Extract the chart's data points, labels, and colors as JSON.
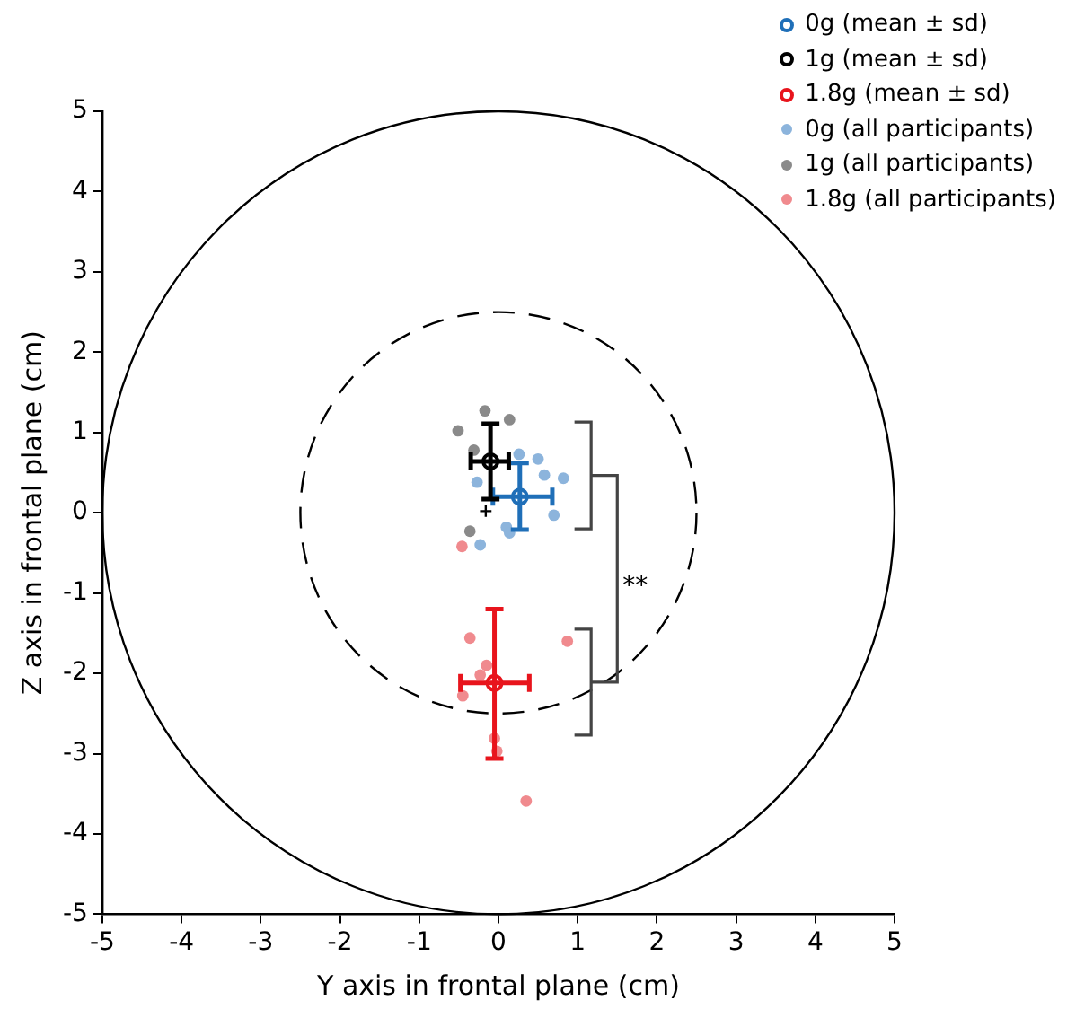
{
  "chart_data": {
    "type": "scatter",
    "xlabel": "Y axis in frontal plane (cm)",
    "ylabel": "Z axis in frontal plane (cm)",
    "xlim": [
      -5,
      5
    ],
    "ylim": [
      -5,
      5
    ],
    "xticks": [
      -5,
      -4,
      -3,
      -2,
      -1,
      0,
      1,
      2,
      3,
      4,
      5
    ],
    "yticks": [
      -5,
      -4,
      -3,
      -2,
      -1,
      0,
      1,
      2,
      3,
      4,
      5
    ],
    "grid": false,
    "legend": "top right",
    "annotations": [
      "**"
    ],
    "series": [
      {
        "name": "0g (all participants)",
        "color": "#8cb4dc",
        "marker": "circle",
        "x": [
          0.26,
          0.5,
          0.58,
          0.82,
          -0.27,
          0.7,
          0.1,
          0.14,
          -0.23
        ],
        "values": [
          0.73,
          0.67,
          0.47,
          0.43,
          0.38,
          -0.03,
          -0.18,
          -0.25,
          -0.4
        ]
      },
      {
        "name": "1g (all participants)",
        "color": "#8a8a8a",
        "marker": "circle",
        "x": [
          -0.17,
          -0.51,
          0.14,
          -0.31,
          -0.36
        ],
        "values": [
          1.27,
          1.02,
          1.16,
          0.78,
          -0.23
        ]
      },
      {
        "name": "1.8g (all participants)",
        "color": "#f08a8e",
        "marker": "circle",
        "x": [
          -0.46,
          -0.36,
          0.87,
          -0.15,
          -0.23,
          -0.45,
          -0.05,
          -0.02,
          0.35
        ],
        "values": [
          -0.42,
          -1.56,
          -1.6,
          -1.9,
          -2.02,
          -2.28,
          -2.81,
          -2.97,
          -3.59
        ]
      },
      {
        "color": "#000000",
        "marker": "cross",
        "x": [
          -0.16
        ],
        "values": [
          0.02
        ]
      },
      {
        "name": "0g (mean ± sd)",
        "color": "#1f6fb8",
        "marker": "circle",
        "x": [
          0.27
        ],
        "values": [
          0.2
        ],
        "errors": [
          [
            -0.21,
            0.62
          ]
        ],
        "xerrors": [
          [
            -0.07,
            0.68
          ]
        ]
      },
      {
        "name": "1g (mean ± sd)",
        "color": "#000000",
        "marker": "circle",
        "x": [
          -0.1
        ],
        "values": [
          0.64
        ],
        "errors": [
          [
            0.17,
            1.11
          ]
        ],
        "xerrors": [
          [
            -0.35,
            0.13
          ]
        ]
      },
      {
        "name": "1.8g (mean ± sd)",
        "color": "#e8141c",
        "marker": "circle",
        "x": [
          -0.05
        ],
        "values": [
          -2.12
        ],
        "errors": [
          [
            -3.06,
            -1.2
          ]
        ],
        "xerrors": [
          [
            -0.48,
            0.39
          ]
        ]
      }
    ]
  }
}
